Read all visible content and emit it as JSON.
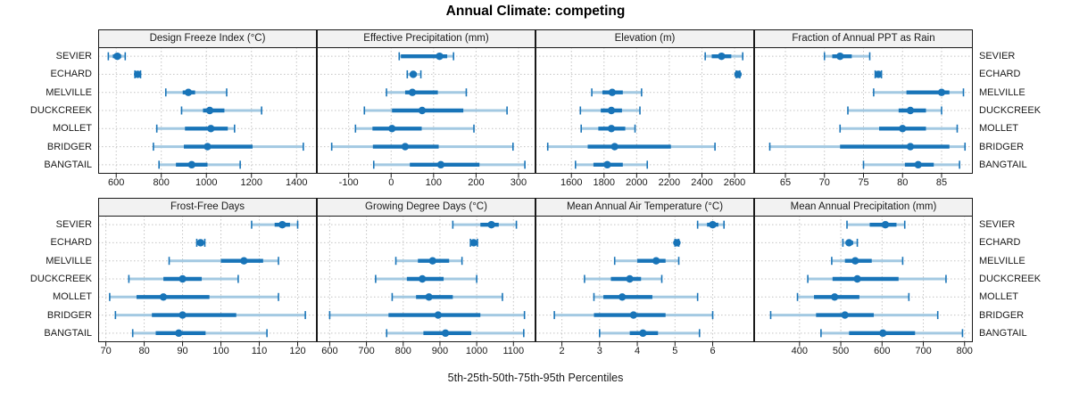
{
  "title": "Annual Climate: competing",
  "xlabel": "5th-25th-50th-75th-95th Percentiles",
  "categories": [
    "SEVIER",
    "ECHARD",
    "MELVILLE",
    "DUCKCREEK",
    "MOLLET",
    "BRIDGER",
    "BANGTAIL"
  ],
  "colors": {
    "interval_inner": "#1874b8",
    "interval_outer": "#a3c9e2",
    "dot": "#1874b8",
    "grid": "#c4c4c4",
    "border": "#1a1a1a",
    "strip_bg": "#f2f2f2",
    "text": "#1a1a1a"
  },
  "layout": {
    "grid_on": true,
    "rows": 2,
    "cols": 4,
    "percentile_labels_bottom": true
  },
  "chart_data": [
    {
      "type": "dotplot-interval",
      "title": "Design Freeze Index (°C)",
      "percentiles": [
        5,
        25,
        50,
        75,
        95
      ],
      "xlim": [
        520,
        1490
      ],
      "ticks": [
        600,
        800,
        1000,
        1200,
        1400
      ],
      "values": [
        [
          565,
          585,
          605,
          622,
          640
        ],
        [
          683,
          690,
          695,
          701,
          708
        ],
        [
          820,
          895,
          920,
          950,
          1090
        ],
        [
          890,
          985,
          1015,
          1080,
          1245
        ],
        [
          780,
          905,
          1020,
          1095,
          1125
        ],
        [
          765,
          900,
          1005,
          1205,
          1430
        ],
        [
          790,
          865,
          935,
          1005,
          1150
        ]
      ]
    },
    {
      "type": "dotplot-interval",
      "title": "Effective Precipitation (mm)",
      "percentiles": [
        5,
        25,
        50,
        75,
        95
      ],
      "xlim": [
        -175,
        340
      ],
      "ticks": [
        -100,
        0,
        100,
        200,
        300
      ],
      "values": [
        [
          19,
          23,
          114,
          132,
          147
        ],
        [
          38,
          46,
          52,
          60,
          70
        ],
        [
          -11,
          33,
          50,
          110,
          177
        ],
        [
          -63,
          2,
          73,
          170,
          273
        ],
        [
          -84,
          -44,
          2,
          72,
          195
        ],
        [
          -140,
          -43,
          33,
          112,
          287
        ],
        [
          -41,
          44,
          117,
          208,
          315
        ]
      ]
    },
    {
      "type": "dotplot-interval",
      "title": "Elevation (m)",
      "percentiles": [
        5,
        25,
        50,
        75,
        95
      ],
      "xlim": [
        1380,
        2720
      ],
      "ticks": [
        1600,
        1800,
        2000,
        2200,
        2400,
        2600
      ],
      "values": [
        [
          2420,
          2460,
          2520,
          2580,
          2650
        ],
        [
          2610,
          2616,
          2621,
          2626,
          2632
        ],
        [
          1725,
          1790,
          1850,
          1915,
          2030
        ],
        [
          1655,
          1780,
          1845,
          1910,
          2020
        ],
        [
          1660,
          1765,
          1845,
          1930,
          1990
        ],
        [
          1455,
          1700,
          1865,
          2210,
          2480
        ],
        [
          1625,
          1735,
          1820,
          1915,
          2065
        ]
      ]
    },
    {
      "type": "dotplot-interval",
      "title": "Fraction of Annual PPT as Rain",
      "percentiles": [
        5,
        25,
        50,
        75,
        95
      ],
      "xlim": [
        61,
        89
      ],
      "ticks": [
        65,
        70,
        75,
        80,
        85
      ],
      "values": [
        [
          70,
          71,
          72,
          73.5,
          75.8
        ],
        [
          76.5,
          76.7,
          76.9,
          77.1,
          77.3
        ],
        [
          76.3,
          80.5,
          85,
          86,
          87.8
        ],
        [
          73,
          79.5,
          81,
          83,
          85
        ],
        [
          72,
          77,
          80,
          83,
          87
        ],
        [
          63,
          72,
          81,
          86,
          88
        ],
        [
          75,
          80.3,
          82,
          84,
          87.3
        ]
      ]
    },
    {
      "type": "dotplot-interval",
      "title": "Frost-Free Days",
      "percentiles": [
        5,
        25,
        50,
        75,
        95
      ],
      "xlim": [
        68,
        125
      ],
      "ticks": [
        70,
        80,
        90,
        100,
        110,
        120
      ],
      "values": [
        [
          108,
          114,
          116,
          118,
          120
        ],
        [
          93.7,
          94.3,
          94.7,
          95.2,
          95.8
        ],
        [
          86.5,
          100,
          106,
          111,
          115
        ],
        [
          76,
          85,
          90,
          95,
          104.5
        ],
        [
          71,
          78,
          85,
          97,
          115
        ],
        [
          72.5,
          82,
          90,
          104,
          122
        ],
        [
          77,
          83,
          89,
          96,
          112
        ]
      ]
    },
    {
      "type": "dotplot-interval",
      "title": "Growing Degree Days (°C)",
      "percentiles": [
        5,
        25,
        50,
        75,
        95
      ],
      "xlim": [
        565,
        1160
      ],
      "ticks": [
        600,
        700,
        800,
        900,
        1000,
        1100
      ],
      "values": [
        [
          935,
          1010,
          1040,
          1060,
          1108
        ],
        [
          983,
          988,
          992,
          997,
          1002
        ],
        [
          780,
          840,
          880,
          925,
          960
        ],
        [
          725,
          810,
          852,
          910,
          1000
        ],
        [
          770,
          835,
          870,
          935,
          1070
        ],
        [
          600,
          760,
          895,
          1010,
          1130
        ],
        [
          755,
          855,
          915,
          985,
          1128
        ]
      ]
    },
    {
      "type": "dotplot-interval",
      "title": "Mean Annual Air Temperature (°C)",
      "percentiles": [
        5,
        25,
        50,
        75,
        95
      ],
      "xlim": [
        1.3,
        7.1
      ],
      "ticks": [
        2,
        3,
        4,
        5,
        6
      ],
      "values": [
        [
          5.6,
          5.85,
          6.0,
          6.15,
          6.3
        ],
        [
          5.0,
          5.03,
          5.05,
          5.08,
          5.1
        ],
        [
          3.4,
          4.0,
          4.5,
          4.75,
          5.1
        ],
        [
          2.6,
          3.3,
          3.8,
          4.1,
          4.65
        ],
        [
          2.85,
          3.1,
          3.6,
          4.4,
          5.6
        ],
        [
          1.8,
          2.85,
          3.9,
          4.75,
          6.0
        ],
        [
          3.0,
          3.8,
          4.15,
          4.55,
          5.65
        ]
      ]
    },
    {
      "type": "dotplot-interval",
      "title": "Mean Annual Precipitation (mm)",
      "percentiles": [
        5,
        25,
        50,
        75,
        95
      ],
      "xlim": [
        290,
        820
      ],
      "ticks": [
        400,
        500,
        600,
        700,
        800
      ],
      "values": [
        [
          515,
          570,
          608,
          635,
          655
        ],
        [
          505,
          513,
          520,
          530,
          540
        ],
        [
          478,
          510,
          535,
          575,
          650
        ],
        [
          420,
          480,
          540,
          640,
          755
        ],
        [
          395,
          435,
          485,
          545,
          665
        ],
        [
          330,
          440,
          510,
          580,
          735
        ],
        [
          452,
          520,
          602,
          680,
          795
        ]
      ]
    }
  ]
}
